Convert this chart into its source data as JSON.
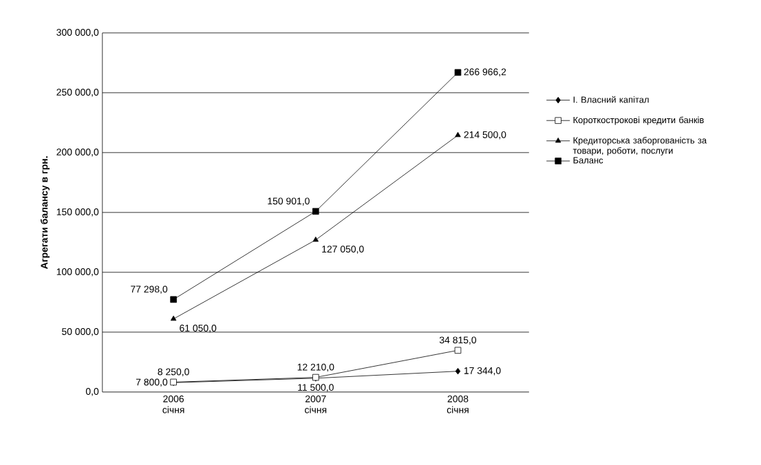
{
  "chart_data": {
    "type": "line",
    "ylabel": "Агрегати балансу в грн.",
    "categories": [
      "2006 січня",
      "2007 січня",
      "2008 січня"
    ],
    "ylim": [
      0,
      300000
    ],
    "yticks": [
      {
        "value": 0,
        "label": "0,0"
      },
      {
        "value": 50000,
        "label": "50 000,0"
      },
      {
        "value": 100000,
        "label": "100 000,0"
      },
      {
        "value": 150000,
        "label": "150 000,0"
      },
      {
        "value": 200000,
        "label": "200 000,0"
      },
      {
        "value": 250000,
        "label": "250 000,0"
      },
      {
        "value": 300000,
        "label": "300 000,0"
      }
    ],
    "grid": "y",
    "legend": "right",
    "series": [
      {
        "name": "І. Власний капітал",
        "color": "#000000",
        "marker": "diamond",
        "values": [
          7800,
          11500,
          17344
        ],
        "value_labels": [
          "7 800,0",
          "11 500,0",
          "17 344,0"
        ]
      },
      {
        "name": "Короткострокові кредити банків",
        "color": "#000000",
        "marker": "square",
        "values": [
          8250,
          12210,
          34815
        ],
        "value_labels": [
          "8 250,0",
          "12 210,0",
          "34 815,0"
        ]
      },
      {
        "name": "Кредиторська заборгованість за товари, роботи, послуги",
        "color": "#000000",
        "marker": "triangle",
        "values": [
          61050,
          127050,
          214500
        ],
        "value_labels": [
          "61 050,0",
          "127 050,0",
          "214 500,0"
        ]
      },
      {
        "name": "Баланс",
        "color": "#000000",
        "marker": "square",
        "values": [
          77298,
          150901,
          266966.2
        ],
        "value_labels": [
          "77 298,0",
          "150 901,0",
          "266 966,2"
        ]
      }
    ]
  }
}
